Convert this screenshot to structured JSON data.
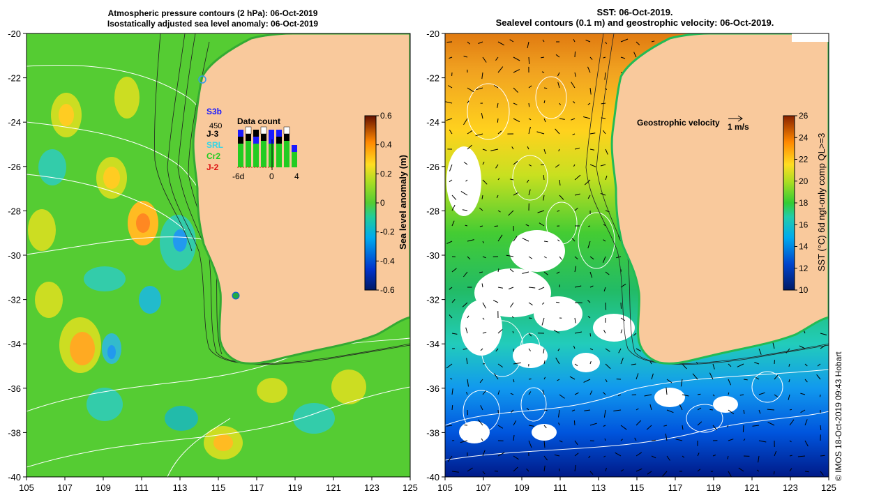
{
  "left_panel": {
    "title_line1": "Atmospheric pressure contours (2 hPa): 06-Oct-2019",
    "title_line2": "Isostatically adjusted sea level anomaly: 06-Oct-2019",
    "colorbar_label": "Sea level anomaly (m)",
    "colorbar_ticks": [
      "0.6",
      "0.4",
      "0.2",
      "0",
      "-0.2",
      "-0.4",
      "-0.6"
    ],
    "satellites": [
      {
        "name": "S3b",
        "color": "#1a1aff"
      },
      {
        "name": "450",
        "color": "#000000"
      },
      {
        "name": "J-3",
        "color": "#000000"
      },
      {
        "name": "SRL",
        "color": "#33d6e6"
      },
      {
        "name": "Cr2",
        "color": "#22cc22"
      },
      {
        "name": "J-2",
        "color": "#dd1111"
      }
    ],
    "inset_title": "Data count",
    "inset_ticks": [
      "-6d",
      "0",
      "4"
    ]
  },
  "right_panel": {
    "title_line1": "SST: 06-Oct-2019.",
    "title_line2": "Sealevel contours (0.1 m) and geostrophic velocity: 06-Oct-2019.",
    "velocity_label": "Geostrophic velocity",
    "velocity_scale": "1 m/s",
    "colorbar_label": "SST (°C) 6d ngt-only comp QL>=3",
    "colorbar_ticks": [
      "26",
      "24",
      "22",
      "20",
      "18",
      "16",
      "14",
      "12",
      "10"
    ]
  },
  "axes": {
    "y_ticks": [
      "-20",
      "-22",
      "-24",
      "-26",
      "-28",
      "-30",
      "-32",
      "-34",
      "-36",
      "-38",
      "-40"
    ],
    "x_ticks": [
      "105",
      "107",
      "109",
      "111",
      "113",
      "115",
      "117",
      "119",
      "121",
      "123",
      "125"
    ]
  },
  "credit": "© IMOS 18-Oct-2019 09:43 Hobart",
  "colors": {
    "land": "#f9c99c",
    "sla_background": "#55cc33",
    "white_contour": "#ffffff"
  }
}
